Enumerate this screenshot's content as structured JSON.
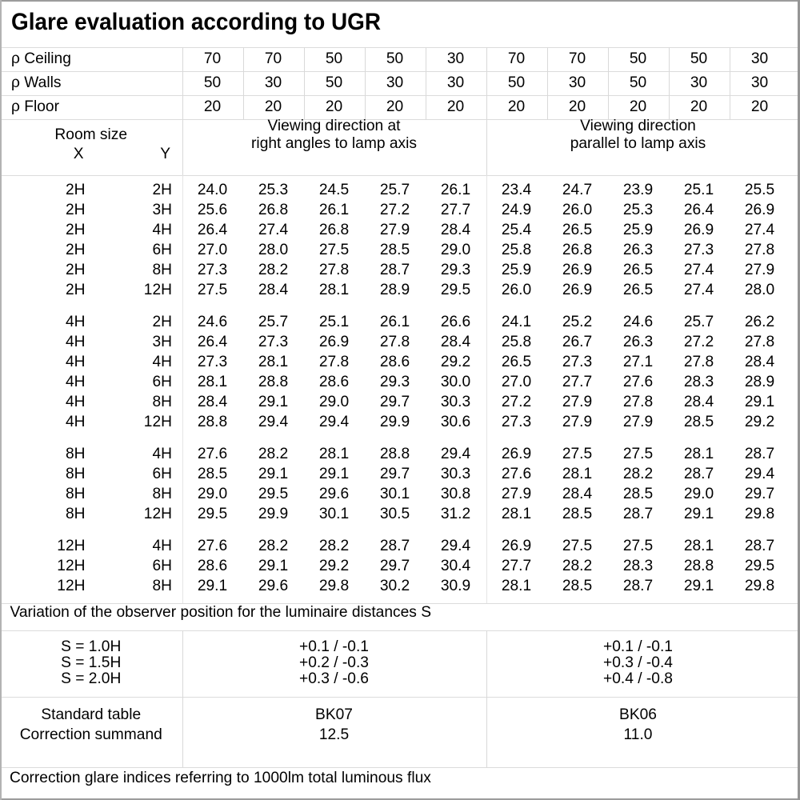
{
  "title": "Glare evaluation according to UGR",
  "reflectances": {
    "rows": [
      {
        "label": "ρ Ceiling",
        "values": [
          "70",
          "70",
          "50",
          "50",
          "30",
          "70",
          "70",
          "50",
          "50",
          "30"
        ]
      },
      {
        "label": "ρ Walls",
        "values": [
          "50",
          "30",
          "50",
          "30",
          "30",
          "50",
          "30",
          "50",
          "30",
          "30"
        ]
      },
      {
        "label": "ρ Floor",
        "values": [
          "20",
          "20",
          "20",
          "20",
          "20",
          "20",
          "20",
          "20",
          "20",
          "20"
        ]
      }
    ]
  },
  "header": {
    "room_size": "Room size",
    "x": "X",
    "y": "Y",
    "group_right_angles_line1": "Viewing direction at",
    "group_right_angles_line2": "right angles to lamp axis",
    "group_parallel_line1": "Viewing direction",
    "group_parallel_line2": "parallel to lamp axis"
  },
  "ugr_table": {
    "groups": [
      {
        "rows": [
          {
            "x": "2H",
            "y": "2H",
            "values": [
              "24.0",
              "25.3",
              "24.5",
              "25.7",
              "26.1",
              "23.4",
              "24.7",
              "23.9",
              "25.1",
              "25.5"
            ]
          },
          {
            "x": "2H",
            "y": "3H",
            "values": [
              "25.6",
              "26.8",
              "26.1",
              "27.2",
              "27.7",
              "24.9",
              "26.0",
              "25.3",
              "26.4",
              "26.9"
            ]
          },
          {
            "x": "2H",
            "y": "4H",
            "values": [
              "26.4",
              "27.4",
              "26.8",
              "27.9",
              "28.4",
              "25.4",
              "26.5",
              "25.9",
              "26.9",
              "27.4"
            ]
          },
          {
            "x": "2H",
            "y": "6H",
            "values": [
              "27.0",
              "28.0",
              "27.5",
              "28.5",
              "29.0",
              "25.8",
              "26.8",
              "26.3",
              "27.3",
              "27.8"
            ]
          },
          {
            "x": "2H",
            "y": "8H",
            "values": [
              "27.3",
              "28.2",
              "27.8",
              "28.7",
              "29.3",
              "25.9",
              "26.9",
              "26.5",
              "27.4",
              "27.9"
            ]
          },
          {
            "x": "2H",
            "y": "12H",
            "values": [
              "27.5",
              "28.4",
              "28.1",
              "28.9",
              "29.5",
              "26.0",
              "26.9",
              "26.5",
              "27.4",
              "28.0"
            ]
          }
        ]
      },
      {
        "rows": [
          {
            "x": "4H",
            "y": "2H",
            "values": [
              "24.6",
              "25.7",
              "25.1",
              "26.1",
              "26.6",
              "24.1",
              "25.2",
              "24.6",
              "25.7",
              "26.2"
            ]
          },
          {
            "x": "4H",
            "y": "3H",
            "values": [
              "26.4",
              "27.3",
              "26.9",
              "27.8",
              "28.4",
              "25.8",
              "26.7",
              "26.3",
              "27.2",
              "27.8"
            ]
          },
          {
            "x": "4H",
            "y": "4H",
            "values": [
              "27.3",
              "28.1",
              "27.8",
              "28.6",
              "29.2",
              "26.5",
              "27.3",
              "27.1",
              "27.8",
              "28.4"
            ]
          },
          {
            "x": "4H",
            "y": "6H",
            "values": [
              "28.1",
              "28.8",
              "28.6",
              "29.3",
              "30.0",
              "27.0",
              "27.7",
              "27.6",
              "28.3",
              "28.9"
            ]
          },
          {
            "x": "4H",
            "y": "8H",
            "values": [
              "28.4",
              "29.1",
              "29.0",
              "29.7",
              "30.3",
              "27.2",
              "27.9",
              "27.8",
              "28.4",
              "29.1"
            ]
          },
          {
            "x": "4H",
            "y": "12H",
            "values": [
              "28.8",
              "29.4",
              "29.4",
              "29.9",
              "30.6",
              "27.3",
              "27.9",
              "27.9",
              "28.5",
              "29.2"
            ]
          }
        ]
      },
      {
        "rows": [
          {
            "x": "8H",
            "y": "4H",
            "values": [
              "27.6",
              "28.2",
              "28.1",
              "28.8",
              "29.4",
              "26.9",
              "27.5",
              "27.5",
              "28.1",
              "28.7"
            ]
          },
          {
            "x": "8H",
            "y": "6H",
            "values": [
              "28.5",
              "29.1",
              "29.1",
              "29.7",
              "30.3",
              "27.6",
              "28.1",
              "28.2",
              "28.7",
              "29.4"
            ]
          },
          {
            "x": "8H",
            "y": "8H",
            "values": [
              "29.0",
              "29.5",
              "29.6",
              "30.1",
              "30.8",
              "27.9",
              "28.4",
              "28.5",
              "29.0",
              "29.7"
            ]
          },
          {
            "x": "8H",
            "y": "12H",
            "values": [
              "29.5",
              "29.9",
              "30.1",
              "30.5",
              "31.2",
              "28.1",
              "28.5",
              "28.7",
              "29.1",
              "29.8"
            ]
          }
        ]
      },
      {
        "rows": [
          {
            "x": "12H",
            "y": "4H",
            "values": [
              "27.6",
              "28.2",
              "28.2",
              "28.7",
              "29.4",
              "26.9",
              "27.5",
              "27.5",
              "28.1",
              "28.7"
            ]
          },
          {
            "x": "12H",
            "y": "6H",
            "values": [
              "28.6",
              "29.1",
              "29.2",
              "29.7",
              "30.4",
              "27.7",
              "28.2",
              "28.3",
              "28.8",
              "29.5"
            ]
          },
          {
            "x": "12H",
            "y": "8H",
            "values": [
              "29.1",
              "29.6",
              "29.8",
              "30.2",
              "30.9",
              "28.1",
              "28.5",
              "28.7",
              "29.1",
              "29.8"
            ]
          }
        ]
      }
    ]
  },
  "variation_note": "Variation of the observer position for the luminaire distances S",
  "observer_variation": {
    "rows": [
      {
        "label": "S = 1.0H",
        "right_angles": "+0.1 / -0.1",
        "parallel": "+0.1 / -0.1"
      },
      {
        "label": "S = 1.5H",
        "right_angles": "+0.2 / -0.3",
        "parallel": "+0.3 / -0.4"
      },
      {
        "label": "S = 2.0H",
        "right_angles": "+0.3 / -0.6",
        "parallel": "+0.4 / -0.8"
      }
    ]
  },
  "standard_table": {
    "rows": [
      {
        "label": "Standard table",
        "right_angles": "BK07",
        "parallel": "BK06"
      },
      {
        "label": "Correction summand",
        "right_angles": "12.5",
        "parallel": "11.0"
      }
    ]
  },
  "correction_note": "Correction glare indices referring to 1000lm total luminous flux"
}
